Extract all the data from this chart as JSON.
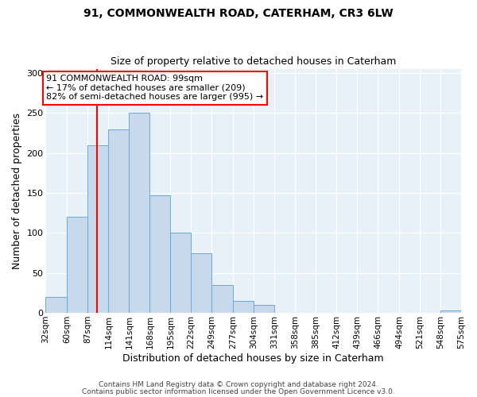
{
  "title1": "91, COMMONWEALTH ROAD, CATERHAM, CR3 6LW",
  "title2": "Size of property relative to detached houses in Caterham",
  "xlabel": "Distribution of detached houses by size in Caterham",
  "ylabel": "Number of detached properties",
  "bar_color": "#c8d9ee",
  "bar_edge_color": "#6aaad4",
  "background_color": "#e8f0f8",
  "red_line_x": 99,
  "annotation_title": "91 COMMONWEALTH ROAD: 99sqm",
  "annotation_line1": "← 17% of detached houses are smaller (209)",
  "annotation_line2": "82% of semi-detached houses are larger (995) →",
  "bin_edges": [
    32,
    60,
    87,
    114,
    141,
    168,
    195,
    222,
    249,
    277,
    304,
    331,
    358,
    385,
    412,
    439,
    466,
    494,
    521,
    548,
    575
  ],
  "bar_heights": [
    20,
    120,
    210,
    230,
    250,
    147,
    100,
    75,
    35,
    15,
    10,
    0,
    0,
    0,
    0,
    0,
    0,
    0,
    0,
    3
  ],
  "ylim": [
    0,
    305
  ],
  "yticks": [
    0,
    50,
    100,
    150,
    200,
    250,
    300
  ],
  "footer1": "Contains HM Land Registry data © Crown copyright and database right 2024.",
  "footer2": "Contains public sector information licensed under the Open Government Licence v3.0."
}
